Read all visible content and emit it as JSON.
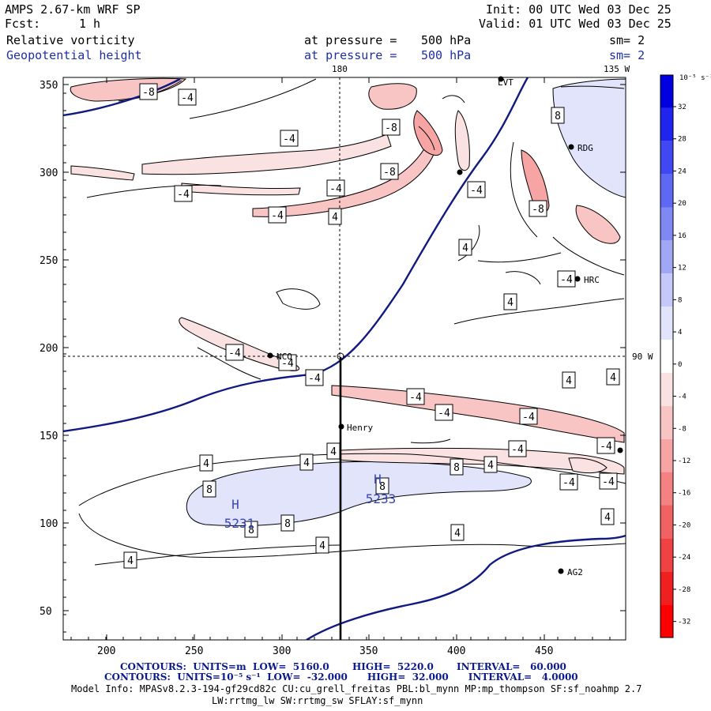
{
  "header": {
    "model": "AMPS 2.67-km WRF SP",
    "fcst_label": "Fcst:",
    "fcst_value": "1 h",
    "init": "Init: 00 UTC Wed 03 Dec 25",
    "valid": "Valid: 01 UTC Wed 03 Dec 25",
    "field1": {
      "name": "Relative vorticity",
      "level_label": "at pressure =",
      "level": "500 hPa",
      "smooth": "sm= 2"
    },
    "field2": {
      "name": "Geopotential height",
      "level_label": "at pressure =",
      "level": "500 hPa",
      "smooth": "sm= 2"
    }
  },
  "map": {
    "x_ticks": [
      "200",
      "250",
      "300",
      "350",
      "400",
      "450"
    ],
    "y_ticks": [
      "350",
      "300",
      "250",
      "200",
      "150",
      "100",
      "50"
    ],
    "longitude_labels": {
      "top": "180",
      "top_right": "135 W",
      "right": "90 W"
    },
    "stations": [
      {
        "name": "LVT"
      },
      {
        "name": "RDG"
      },
      {
        "name": "HRC"
      },
      {
        "name": "NCO"
      },
      {
        "name": "Henry"
      },
      {
        "name": "AG2"
      }
    ],
    "highs": [
      {
        "symbol": "H",
        "value": "5231"
      },
      {
        "symbol": "H",
        "value": "5233"
      }
    ],
    "contour_labels": [
      {
        "text": "-8"
      },
      {
        "text": "-4"
      },
      {
        "text": "-8"
      },
      {
        "text": "8"
      },
      {
        "text": "-4"
      },
      {
        "text": "-8"
      },
      {
        "text": "-4"
      },
      {
        "text": "-4"
      },
      {
        "text": "-4"
      },
      {
        "text": "-4"
      },
      {
        "text": "4"
      },
      {
        "text": "-8"
      },
      {
        "text": "4"
      },
      {
        "text": "-4"
      },
      {
        "text": "4"
      },
      {
        "text": "-4"
      },
      {
        "text": "-4"
      },
      {
        "text": "-4"
      },
      {
        "text": "-4"
      },
      {
        "text": "-4"
      },
      {
        "text": "4"
      },
      {
        "text": "4"
      },
      {
        "text": "-4"
      },
      {
        "text": "-4"
      },
      {
        "text": "-4"
      },
      {
        "text": "4"
      },
      {
        "text": "4"
      },
      {
        "text": "8"
      },
      {
        "text": "4"
      },
      {
        "text": "-4"
      },
      {
        "text": "8"
      },
      {
        "text": "8"
      },
      {
        "text": "8"
      },
      {
        "text": "8"
      },
      {
        "text": "-4"
      },
      {
        "text": "4"
      },
      {
        "text": "4"
      },
      {
        "text": "4"
      },
      {
        "text": "4"
      },
      {
        "text": "4"
      }
    ]
  },
  "colorbar": {
    "unit_label": "10⁻⁵ s⁻¹",
    "labels": [
      "32",
      "28",
      "24",
      "20",
      "16",
      "12",
      "8",
      "4",
      "0",
      "-4",
      "-8",
      "-12",
      "-16",
      "-20",
      "-24",
      "-28",
      "-32"
    ],
    "colors": [
      "#0000e0",
      "#1f24ee",
      "#3f48f2",
      "#5f68f4",
      "#8088f4",
      "#a0a8f6",
      "#c4c8fa",
      "#e2e4fc",
      "#ffffff",
      "#fbe2e2",
      "#f8c4c4",
      "#f6a4a4",
      "#f48282",
      "#f26262",
      "#f04242",
      "#ef2020",
      "#ff0000"
    ]
  },
  "footer": {
    "line1": "CONTOURS:  UNITS=m  LOW=  5160.0       HIGH=  5220.0       INTERVAL=   60.000",
    "line2": "CONTOURS:  UNITS=10⁻⁵ s⁻¹  LOW=  -32.000      HIGH=  32.000      INTERVAL=   4.0000",
    "line3": "Model Info: MPASv8.2.3-194-gf29cd82c CU:cu_grell_freitas PBL:bl_mynn MP:mp_thompson SF:sf_noahmp 2.7",
    "line4": "LW:rrtmg_lw SW:rrtmg_sw SFLAY:sf_mynn"
  }
}
